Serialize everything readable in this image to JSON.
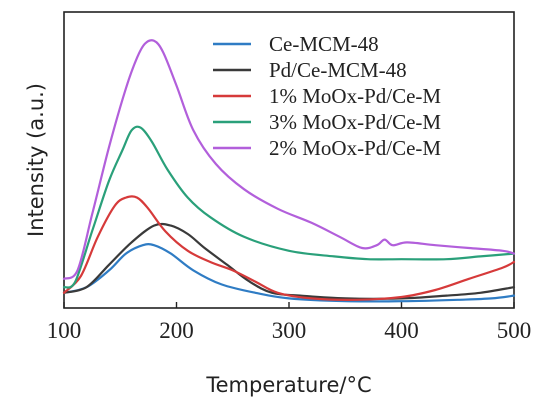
{
  "chart_data": {
    "type": "line",
    "xlabel": "Temperature/",
    "xlabel_unit": "°C",
    "ylabel": "Intensity (a.u.)",
    "xlim": [
      100,
      500
    ],
    "ylim": [
      0,
      100
    ],
    "x_ticks": [
      "100",
      "200",
      "300",
      "400",
      "500"
    ],
    "y_ticks": [],
    "grid": false,
    "legend_position": "top-right",
    "series": [
      {
        "name": "Ce-MCM-48",
        "color": "#2f7cc4",
        "points": [
          [
            100,
            4
          ],
          [
            120,
            6
          ],
          [
            140,
            12
          ],
          [
            155,
            18
          ],
          [
            170,
            21
          ],
          [
            180,
            21
          ],
          [
            195,
            18
          ],
          [
            215,
            12
          ],
          [
            240,
            7
          ],
          [
            270,
            4
          ],
          [
            300,
            2
          ],
          [
            350,
            1
          ],
          [
            400,
            1
          ],
          [
            450,
            1.5
          ],
          [
            480,
            2
          ],
          [
            500,
            3
          ]
        ]
      },
      {
        "name": "Pd/Ce-MCM-48",
        "color": "#3a3a3a",
        "points": [
          [
            100,
            4
          ],
          [
            120,
            6
          ],
          [
            140,
            14
          ],
          [
            160,
            22
          ],
          [
            180,
            28
          ],
          [
            195,
            28
          ],
          [
            210,
            25
          ],
          [
            225,
            20
          ],
          [
            245,
            14
          ],
          [
            265,
            8
          ],
          [
            285,
            4
          ],
          [
            310,
            3
          ],
          [
            350,
            2
          ],
          [
            400,
            2
          ],
          [
            440,
            3
          ],
          [
            470,
            4
          ],
          [
            500,
            6
          ]
        ]
      },
      {
        "name": "1% MoOx-Pd/Ce-M",
        "color": "#d63a3a",
        "points": [
          [
            100,
            4
          ],
          [
            115,
            10
          ],
          [
            130,
            24
          ],
          [
            145,
            35
          ],
          [
            155,
            38
          ],
          [
            165,
            38
          ],
          [
            175,
            34
          ],
          [
            190,
            26
          ],
          [
            210,
            19
          ],
          [
            230,
            15
          ],
          [
            250,
            12
          ],
          [
            270,
            8
          ],
          [
            290,
            4
          ],
          [
            320,
            2
          ],
          [
            360,
            1.5
          ],
          [
            400,
            2.5
          ],
          [
            430,
            5
          ],
          [
            460,
            9
          ],
          [
            490,
            13
          ],
          [
            500,
            15
          ]
        ]
      },
      {
        "name": "3% MoOx-Pd/Ce-M",
        "color": "#2aa07a",
        "points": [
          [
            100,
            6
          ],
          [
            110,
            8
          ],
          [
            125,
            26
          ],
          [
            140,
            44
          ],
          [
            152,
            55
          ],
          [
            160,
            62
          ],
          [
            168,
            63
          ],
          [
            178,
            58
          ],
          [
            192,
            48
          ],
          [
            210,
            38
          ],
          [
            230,
            31
          ],
          [
            260,
            24
          ],
          [
            300,
            19
          ],
          [
            340,
            17
          ],
          [
            370,
            16
          ],
          [
            400,
            16
          ],
          [
            440,
            16
          ],
          [
            470,
            17
          ],
          [
            500,
            18
          ]
        ]
      },
      {
        "name": "2% MoOx-Pd/Ce-M",
        "color": "#b25fdb",
        "points": [
          [
            100,
            9
          ],
          [
            112,
            12
          ],
          [
            125,
            32
          ],
          [
            140,
            56
          ],
          [
            155,
            77
          ],
          [
            165,
            88
          ],
          [
            172,
            93
          ],
          [
            180,
            94
          ],
          [
            188,
            90
          ],
          [
            200,
            78
          ],
          [
            215,
            62
          ],
          [
            235,
            50
          ],
          [
            260,
            41
          ],
          [
            290,
            34
          ],
          [
            320,
            29
          ],
          [
            345,
            24
          ],
          [
            365,
            20
          ],
          [
            378,
            21
          ],
          [
            385,
            23
          ],
          [
            392,
            21
          ],
          [
            405,
            22
          ],
          [
            430,
            21
          ],
          [
            460,
            20
          ],
          [
            490,
            19
          ],
          [
            500,
            18
          ]
        ]
      }
    ]
  }
}
